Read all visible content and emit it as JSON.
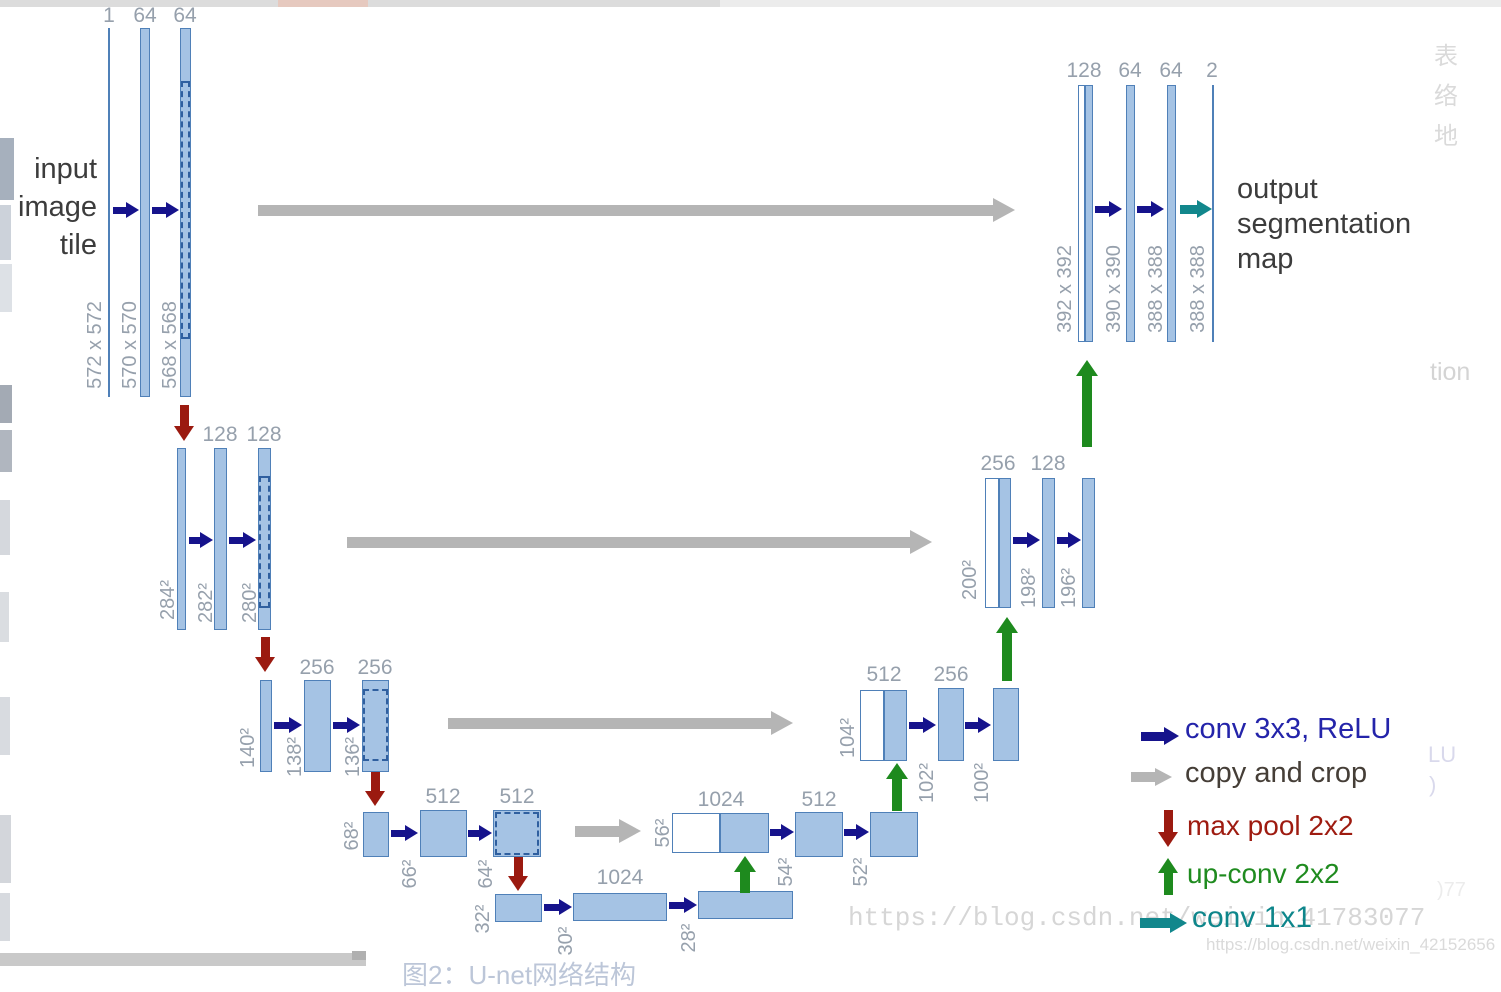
{
  "texts": {
    "input_line1": "input",
    "input_line2": "image",
    "input_line3": "tile",
    "output_line1": "output",
    "output_line2": "segmentation",
    "output_line3": "map"
  },
  "enc": {
    "l1": {
      "ch": [
        "1",
        "64",
        "64"
      ],
      "sz": [
        "572 x 572",
        "570 x 570",
        "568 x 568"
      ]
    },
    "l2": {
      "ch": [
        "128",
        "128"
      ],
      "sz": [
        "284²",
        "282²",
        "280²"
      ]
    },
    "l3": {
      "ch": [
        "256",
        "256"
      ],
      "sz": [
        "140²",
        "138²",
        "136²"
      ]
    },
    "l4": {
      "ch": [
        "512",
        "512"
      ],
      "sz": [
        "68²",
        "66²",
        "64²"
      ]
    },
    "l5": {
      "ch": [
        "1024"
      ],
      "sz": [
        "32²",
        "30²",
        "28²"
      ]
    }
  },
  "dec": {
    "l4": {
      "ch": [
        "1024",
        "512"
      ],
      "sz": [
        "56²",
        "54²",
        "52²"
      ]
    },
    "l3": {
      "ch": [
        "512",
        "256"
      ],
      "sz": [
        "104²",
        "102²",
        "100²"
      ]
    },
    "l2": {
      "ch": [
        "256",
        "128"
      ],
      "sz": [
        "200²",
        "198²",
        "196²"
      ]
    },
    "l1": {
      "ch": [
        "128",
        "64",
        "64",
        "2"
      ],
      "sz": [
        "392 x 392",
        "390 x 390",
        "388 x 388",
        "388 x 388"
      ]
    }
  },
  "legend": {
    "items": [
      {
        "label": "conv 3x3, ReLU",
        "color": "#2424aa"
      },
      {
        "label": "copy and crop",
        "color": "#453e37"
      },
      {
        "label": "max pool 2x2",
        "color": "#9e1b10"
      },
      {
        "label": "up-conv 2x2",
        "color": "#1f8b1f"
      },
      {
        "label": "conv 1x1",
        "color": "#0e868b"
      }
    ]
  },
  "colors": {
    "conv_arrow": "#16138c",
    "copy_arrow": "#b5b5b5",
    "maxpool_arrow": "#9b1a10",
    "upconv_arrow": "#1e8a1e",
    "conv1x1_arrow": "#12878c",
    "bar_fill": "#a5c3e4",
    "bar_border": "#4f80b8",
    "dash_border": "#2f5f9f",
    "label_gray": "#96a0ac"
  },
  "watermarks": {
    "large": "https://blog.csdn.net/weixin_41783077",
    "small": "https://blog.csdn.net/weixin_42152656",
    "right_chars": [
      "表",
      "络",
      "地"
    ],
    "right_tion": "tion",
    "ghost_lu": "LU",
    "ghost_paren": ")",
    "ghost_77": ")77",
    "caption": "图2：U-net网络结构"
  }
}
